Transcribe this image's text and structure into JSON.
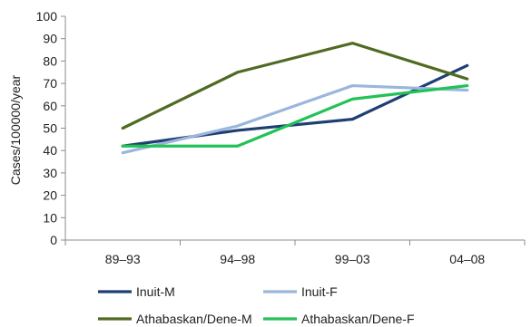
{
  "chart_data": {
    "type": "line",
    "title": "",
    "xlabel": "",
    "ylabel": "Cases/100000/year",
    "categories": [
      "89–93",
      "94–98",
      "99–03",
      "04–08"
    ],
    "ylim": [
      0,
      100
    ],
    "yticks": [
      0,
      10,
      20,
      30,
      40,
      50,
      60,
      70,
      80,
      90,
      100
    ],
    "grid": false,
    "legend_position": "bottom",
    "series": [
      {
        "name": "Inuit-M",
        "color": "#1f3f73",
        "values": [
          42,
          49,
          54,
          78
        ]
      },
      {
        "name": "Inuit-F",
        "color": "#9ab6dc",
        "values": [
          39,
          51,
          69,
          67
        ]
      },
      {
        "name": "Athabaskan/Dene-M",
        "color": "#4f6b22",
        "values": [
          50,
          75,
          88,
          72
        ]
      },
      {
        "name": "Athabaskan/Dene-F",
        "color": "#22c256",
        "values": [
          42,
          42,
          63,
          69
        ]
      }
    ]
  }
}
